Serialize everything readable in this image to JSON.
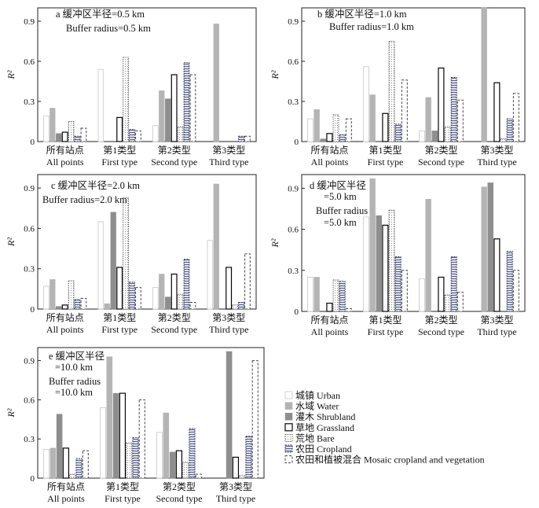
{
  "colors": {
    "urban": "#ffffff",
    "urban_stroke": "#c6c6c6",
    "water": "#b4b4b4",
    "shrub": "#8e8e8e",
    "grass": "#050505",
    "bare_stroke": "#555555",
    "crop_stroke": "#28285a",
    "mosaic_stroke": "#444444"
  },
  "legend": {
    "items": [
      {
        "key": "urban",
        "label": "城镇 Urban"
      },
      {
        "key": "water",
        "label": "水域 Water"
      },
      {
        "key": "shrub",
        "label": "灌木 Shrubland"
      },
      {
        "key": "grass",
        "label": "草地 Grassland"
      },
      {
        "key": "bare",
        "label": "荒地 Bare"
      },
      {
        "key": "crop",
        "label": "农田 Cropland"
      },
      {
        "key": "mosaic",
        "label": "农田和植被混合 Mosaic cropland and vegetation"
      }
    ]
  },
  "chart_data": [
    {
      "type": "bar",
      "panel": "a",
      "annotation": [
        "a 缓冲区半径=0.5 km",
        "Buffer radius=0.5 km"
      ],
      "ylabel": "R²",
      "ylim": [
        0,
        1.0
      ],
      "yticks": [
        "0",
        "0.3",
        "0.6",
        "0.9"
      ],
      "categories": [
        [
          "所有站点",
          "All points"
        ],
        [
          "第1类型",
          "First type"
        ],
        [
          "第2类型",
          "Second type"
        ],
        [
          "第3类型",
          "Third type"
        ]
      ],
      "series": [
        {
          "name": "城镇 Urban",
          "key": "urban",
          "values": [
            0.19,
            0.54,
            0.12,
            0
          ]
        },
        {
          "name": "水域 Water",
          "key": "water",
          "values": [
            0.25,
            0,
            0.38,
            0.88
          ]
        },
        {
          "name": "灌木 Shrubland",
          "key": "shrub",
          "values": [
            0.06,
            0,
            0.32,
            0
          ]
        },
        {
          "name": "草地 Grassland",
          "key": "grass",
          "values": [
            0.07,
            0.18,
            0.5,
            0
          ]
        },
        {
          "name": "荒地 Bare",
          "key": "bare",
          "values": [
            0.15,
            0.63,
            0.11,
            0
          ]
        },
        {
          "name": "农田 Cropland",
          "key": "crop",
          "values": [
            0.04,
            0.09,
            0.59,
            0.04
          ]
        },
        {
          "name": "农田和植被混合 Mosaic cropland and vegetation",
          "key": "mosaic",
          "values": [
            0.1,
            0.08,
            0.5,
            0.04
          ]
        }
      ]
    },
    {
      "type": "bar",
      "panel": "b",
      "annotation": [
        "b 缓冲区半径=1.0 km",
        "Buffer radius=1.0 km"
      ],
      "ylabel": "R²",
      "ylim": [
        0,
        1.0
      ],
      "yticks": [
        "0",
        "0.3",
        "0.6",
        "0.9"
      ],
      "categories": [
        [
          "所有站点",
          "All points"
        ],
        [
          "第1类型",
          "First type"
        ],
        [
          "第2类型",
          "Second type"
        ],
        [
          "第3类型",
          "Third type"
        ]
      ],
      "series": [
        {
          "name": "城镇 Urban",
          "key": "urban",
          "values": [
            0.17,
            0.56,
            0.08,
            0
          ]
        },
        {
          "name": "水域 Water",
          "key": "water",
          "values": [
            0.24,
            0.35,
            0.33,
            1.0
          ]
        },
        {
          "name": "灌木 Shrubland",
          "key": "shrub",
          "values": [
            0.02,
            0,
            0.08,
            0
          ]
        },
        {
          "name": "草地 Grassland",
          "key": "grass",
          "values": [
            0.06,
            0.21,
            0.55,
            0.44
          ]
        },
        {
          "name": "荒地 Bare",
          "key": "bare",
          "values": [
            0.2,
            0.75,
            0.11,
            0.02
          ]
        },
        {
          "name": "农田 Cropland",
          "key": "crop",
          "values": [
            0.05,
            0.13,
            0.48,
            0.17
          ]
        },
        {
          "name": "农田和植被混合 Mosaic cropland and vegetation",
          "key": "mosaic",
          "values": [
            0.17,
            0.46,
            0.31,
            0.36
          ]
        }
      ]
    },
    {
      "type": "bar",
      "panel": "c",
      "annotation": [
        "c 缓冲区半径=2.0 km",
        "Buffer radius=2.0 km"
      ],
      "ylabel": "R²",
      "ylim": [
        0,
        1.0
      ],
      "yticks": [
        "0",
        "0.3",
        "0.6",
        "0.9"
      ],
      "categories": [
        [
          "所有站点",
          "All points"
        ],
        [
          "第1类型",
          "First type"
        ],
        [
          "第2类型",
          "Second type"
        ],
        [
          "第3类型",
          "Third type"
        ]
      ],
      "series": [
        {
          "name": "城镇 Urban",
          "key": "urban",
          "values": [
            0.17,
            0.65,
            0.16,
            0.51
          ]
        },
        {
          "name": "水域 Water",
          "key": "water",
          "values": [
            0.22,
            0.04,
            0.26,
            0.93
          ]
        },
        {
          "name": "灌木 Shrubland",
          "key": "shrub",
          "values": [
            0.02,
            0.72,
            0.09,
            0
          ]
        },
        {
          "name": "草地 Grassland",
          "key": "grass",
          "values": [
            0.03,
            0.31,
            0.26,
            0.31
          ]
        },
        {
          "name": "荒地 Bare",
          "key": "bare",
          "values": [
            0.21,
            0.83,
            0.11,
            0.03
          ]
        },
        {
          "name": "农田 Cropland",
          "key": "crop",
          "values": [
            0.07,
            0.2,
            0.37,
            0.05
          ]
        },
        {
          "name": "农田和植被混合 Mosaic cropland and vegetation",
          "key": "mosaic",
          "values": [
            0.08,
            0.16,
            0.05,
            0.41
          ]
        }
      ]
    },
    {
      "type": "bar",
      "panel": "d",
      "annotation": [
        "d 缓冲区半径",
        "=5.0 km",
        "Buffer radius",
        "=5.0 km"
      ],
      "ylabel": "R²",
      "ylim": [
        0,
        1.0
      ],
      "yticks": [
        "0",
        "0.3",
        "0.6",
        "0.9"
      ],
      "categories": [
        [
          "所有站点",
          "All points"
        ],
        [
          "第1类型",
          "First type"
        ],
        [
          "第2类型",
          "Second type"
        ],
        [
          "第3类型",
          "Third type"
        ]
      ],
      "series": [
        {
          "name": "城镇 Urban",
          "key": "urban",
          "values": [
            0.25,
            0.69,
            0.24,
            0
          ]
        },
        {
          "name": "水域 Water",
          "key": "water",
          "values": [
            0.25,
            0.97,
            0.82,
            0.91
          ]
        },
        {
          "name": "灌木 Shrubland",
          "key": "shrub",
          "values": [
            0,
            0.7,
            0,
            0.94
          ]
        },
        {
          "name": "草地 Grassland",
          "key": "grass",
          "values": [
            0.06,
            0.63,
            0.25,
            0.53
          ]
        },
        {
          "name": "荒地 Bare",
          "key": "bare",
          "values": [
            0.23,
            0.74,
            0.12,
            0
          ]
        },
        {
          "name": "农田 Cropland",
          "key": "crop",
          "values": [
            0.22,
            0.4,
            0.4,
            0.44
          ]
        },
        {
          "name": "农田和植被混合 Mosaic cropland and vegetation",
          "key": "mosaic",
          "values": [
            0.02,
            0.3,
            0.14,
            0.3
          ]
        }
      ]
    },
    {
      "type": "bar",
      "panel": "e",
      "annotation": [
        "e 缓冲区半径",
        "=10.0 km",
        "Buffer radius",
        "=10.0 km"
      ],
      "ylabel": "R²",
      "ylim": [
        0,
        1.0
      ],
      "yticks": [
        "0",
        "0.3",
        "0.6",
        "0.9"
      ],
      "categories": [
        [
          "所有站点",
          "All points"
        ],
        [
          "第1类型",
          "First type"
        ],
        [
          "第2类型",
          "Second type"
        ],
        [
          "第3类型",
          "Third type"
        ]
      ],
      "series": [
        {
          "name": "城镇 Urban",
          "key": "urban",
          "values": [
            0.22,
            0.54,
            0.35,
            0
          ]
        },
        {
          "name": "水域 Water",
          "key": "water",
          "values": [
            0.23,
            0.93,
            0.5,
            0
          ]
        },
        {
          "name": "灌木 Shrubland",
          "key": "shrub",
          "values": [
            0.49,
            0.65,
            0.2,
            0.97
          ]
        },
        {
          "name": "草地 Grassland",
          "key": "grass",
          "values": [
            0.23,
            0.65,
            0.21,
            0.16
          ]
        },
        {
          "name": "荒地 Bare",
          "key": "bare",
          "values": [
            0.03,
            0.27,
            0.12,
            0.02
          ]
        },
        {
          "name": "农田 Cropland",
          "key": "crop",
          "values": [
            0.15,
            0.31,
            0.38,
            0.32
          ]
        },
        {
          "name": "农田和植被混合 Mosaic cropland and vegetation",
          "key": "mosaic",
          "values": [
            0.21,
            0.6,
            0.03,
            0.9
          ]
        }
      ]
    }
  ]
}
